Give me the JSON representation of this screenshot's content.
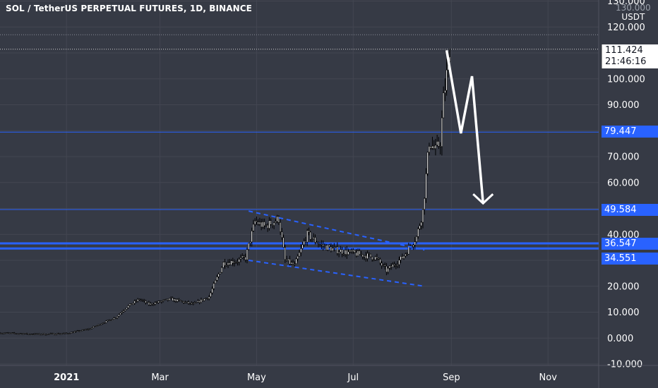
{
  "header": {
    "title": "SOL / TetherUS PERPETUAL FUTURES, 1D, BINANCE",
    "unit_top": "130.000",
    "unit": "USDT"
  },
  "price_tag": {
    "value": "111.424",
    "countdown": "21:46:16"
  },
  "level_tags": [
    "79.447",
    "49.584",
    "36.547",
    "34.551"
  ],
  "colors": {
    "background": "#363a45",
    "level_line": "#2962ff",
    "candle_fill": "#ffffff",
    "candle_outline": "#000000",
    "projection_arrow": "#ffffff",
    "channel": "#2962ff",
    "grid": "#434651"
  },
  "chart_data": {
    "type": "candlestick",
    "title": "SOL / TetherUS PERPETUAL FUTURES, 1D, BINANCE",
    "ylabel": "USDT",
    "ylim": [
      -10,
      130
    ],
    "y_ticks": [
      "-10.000",
      "0.000",
      "10.000",
      "20.000",
      "30.000",
      "40.000",
      "50.000",
      "60.000",
      "70.000",
      "80.000",
      "90.000",
      "100.000",
      "110.000",
      "120.000",
      "130.000"
    ],
    "x_ticks": [
      "2021",
      "Mar",
      "May",
      "Jul",
      "Sep",
      "Nov"
    ],
    "x_tick_dates": [
      "2021-01-01",
      "2021-03-01",
      "2021-05-01",
      "2021-07-01",
      "2021-09-01",
      "2021-11-01"
    ],
    "x_range": [
      "2020-11-20",
      "2021-12-03"
    ],
    "grid": true,
    "last_price": 111.424,
    "price_line": 111.424,
    "horizontal_levels": [
      79.447,
      49.584,
      36.547,
      34.551
    ],
    "level_line_widths": [
      1,
      1,
      3,
      3
    ],
    "channel_lines": [
      {
        "from": [
          "2021-04-26",
          49
        ],
        "to": [
          "2021-08-15",
          34
        ]
      },
      {
        "from": [
          "2021-04-26",
          30
        ],
        "to": [
          "2021-08-15",
          20
        ]
      }
    ],
    "projection_path": [
      [
        "2021-08-29",
        111
      ],
      [
        "2021-09-07",
        79
      ],
      [
        "2021-09-14",
        101
      ],
      [
        "2021-09-21",
        52
      ]
    ],
    "keypoints": [
      [
        "2020-11-20",
        2.0
      ],
      [
        "2020-12-15",
        1.5
      ],
      [
        "2021-01-01",
        1.8
      ],
      [
        "2021-01-15",
        3.5
      ],
      [
        "2021-02-01",
        8
      ],
      [
        "2021-02-08",
        12
      ],
      [
        "2021-02-16",
        15
      ],
      [
        "2021-02-22",
        13
      ],
      [
        "2021-03-08",
        15
      ],
      [
        "2021-03-22",
        13
      ],
      [
        "2021-04-01",
        16
      ],
      [
        "2021-04-10",
        29
      ],
      [
        "2021-04-20",
        30
      ],
      [
        "2021-04-24",
        31
      ],
      [
        "2021-04-30",
        45
      ],
      [
        "2021-05-06",
        43
      ],
      [
        "2021-05-15",
        46
      ],
      [
        "2021-05-19",
        30
      ],
      [
        "2021-05-25",
        28
      ],
      [
        "2021-06-02",
        40
      ],
      [
        "2021-06-10",
        36
      ],
      [
        "2021-06-20",
        34
      ],
      [
        "2021-06-28",
        33
      ],
      [
        "2021-07-08",
        32
      ],
      [
        "2021-07-15",
        31
      ],
      [
        "2021-07-22",
        26
      ],
      [
        "2021-08-01",
        31
      ],
      [
        "2021-08-10",
        39
      ],
      [
        "2021-08-14",
        49
      ],
      [
        "2021-08-18",
        76
      ],
      [
        "2021-08-22",
        72
      ],
      [
        "2021-08-25",
        76
      ],
      [
        "2021-08-27",
        92
      ],
      [
        "2021-08-31",
        111
      ]
    ]
  }
}
